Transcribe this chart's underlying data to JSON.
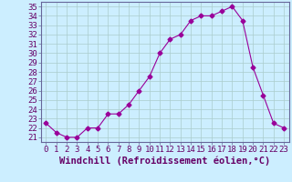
{
  "x": [
    0,
    1,
    2,
    3,
    4,
    5,
    6,
    7,
    8,
    9,
    10,
    11,
    12,
    13,
    14,
    15,
    16,
    17,
    18,
    19,
    20,
    21,
    22,
    23
  ],
  "y": [
    22.5,
    21.5,
    21.0,
    21.0,
    22.0,
    22.0,
    23.5,
    23.5,
    24.5,
    26.0,
    27.5,
    30.0,
    31.5,
    32.0,
    33.5,
    34.0,
    34.0,
    34.5,
    35.0,
    33.5,
    28.5,
    25.5,
    22.5,
    22.0
  ],
  "xlabel": "Windchill (Refroidissement éolien,°C)",
  "xlim": [
    -0.5,
    23.5
  ],
  "ylim": [
    20.5,
    35.5
  ],
  "yticks": [
    21,
    22,
    23,
    24,
    25,
    26,
    27,
    28,
    29,
    30,
    31,
    32,
    33,
    34,
    35
  ],
  "xticks": [
    0,
    1,
    2,
    3,
    4,
    5,
    6,
    7,
    8,
    9,
    10,
    11,
    12,
    13,
    14,
    15,
    16,
    17,
    18,
    19,
    20,
    21,
    22,
    23
  ],
  "line_color": "#990099",
  "marker": "D",
  "marker_size": 2.5,
  "bg_color": "#cceeff",
  "grid_color": "#aacccc",
  "tick_label_fontsize": 6.5,
  "xlabel_fontsize": 7.5
}
